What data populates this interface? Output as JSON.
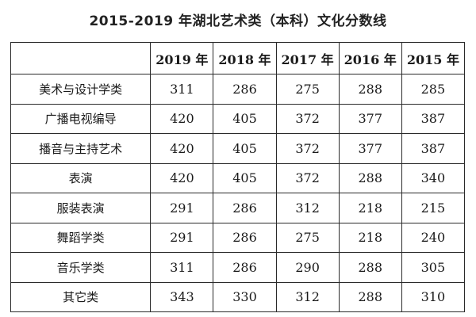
{
  "title": "2015-2019 年湖北艺术类（本科）文化分数线",
  "table": {
    "corner": "",
    "headers": [
      "2019 年",
      "2018 年",
      "2017 年",
      "2016 年",
      "2015 年"
    ],
    "rows": [
      {
        "category": "美术与设计学类",
        "values": [
          "311",
          "286",
          "275",
          "288",
          "285"
        ]
      },
      {
        "category": "广播电视编导",
        "values": [
          "420",
          "405",
          "372",
          "377",
          "387"
        ]
      },
      {
        "category": "播音与主持艺术",
        "values": [
          "420",
          "405",
          "372",
          "377",
          "387"
        ]
      },
      {
        "category": "表演",
        "values": [
          "420",
          "405",
          "372",
          "288",
          "340"
        ]
      },
      {
        "category": "服装表演",
        "values": [
          "291",
          "286",
          "312",
          "218",
          "215"
        ]
      },
      {
        "category": "舞蹈学类",
        "values": [
          "291",
          "286",
          "275",
          "218",
          "240"
        ]
      },
      {
        "category": "音乐学类",
        "values": [
          "311",
          "286",
          "290",
          "288",
          "305"
        ]
      },
      {
        "category": "其它类",
        "values": [
          "343",
          "330",
          "312",
          "288",
          "310"
        ]
      }
    ]
  }
}
